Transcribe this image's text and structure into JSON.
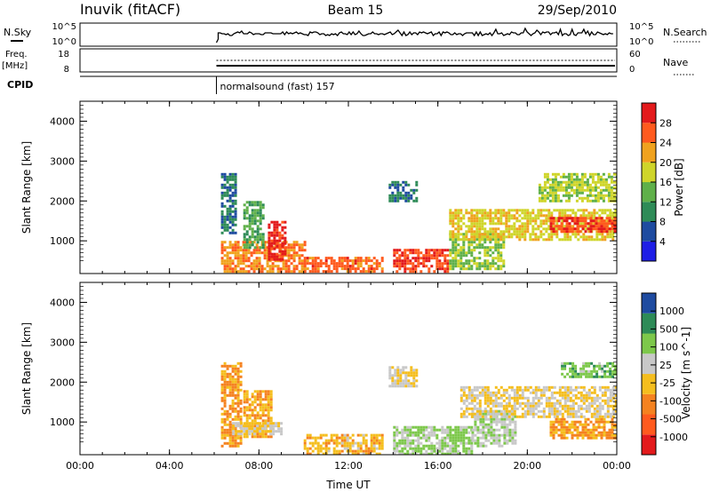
{
  "header": {
    "station": "Inuvik (fitACF)",
    "beam": "Beam 15",
    "date": "29/Sep/2010"
  },
  "summary": {
    "nsky_label": "N.Sky",
    "nsky_ticks": [
      "10^5",
      "10^0"
    ],
    "nsearch_label": "N.Search",
    "nsearch_ticks": [
      "10^5",
      "10^0"
    ],
    "freq_label": "Freq.",
    "freq_unit": "[MHz]",
    "freq_ticks": [
      "18",
      "8"
    ],
    "nave_label": "Nave",
    "nave_ticks": [
      "60",
      "0"
    ],
    "cpid_label": "CPID",
    "cpid_text": "normalsound (fast) 157",
    "start_hour": 6.1
  },
  "colors": {
    "power": [
      "#1e1ee6",
      "#1e4ba0",
      "#2e8b57",
      "#5fb04a",
      "#cfd52a",
      "#f0a21e",
      "#ff5a1e",
      "#e31a1c"
    ],
    "velocity": [
      "#e31a1c",
      "#ff5a1e",
      "#f58220",
      "#f5be1e",
      "#c8c8c8",
      "#7dc84b",
      "#2e8b57",
      "#1e4ba0"
    ]
  },
  "chart_data": [
    {
      "type": "heatmap",
      "title": "",
      "ylabel": "Slant Range [km]",
      "xlabel": "",
      "xlim": [
        0,
        24
      ],
      "ylim": [
        180,
        4500
      ],
      "x_ticks": [
        "00:00",
        "04:00",
        "08:00",
        "12:00",
        "16:00",
        "20:00",
        "00:00"
      ],
      "y_ticks": [
        "1000",
        "2000",
        "3000",
        "4000"
      ],
      "colorbar": {
        "label": "Power [dB]",
        "ticks": [
          "4",
          "8",
          "12",
          "16",
          "20",
          "24",
          "28"
        ],
        "range": [
          0,
          30
        ]
      },
      "echo_regions": [
        {
          "t0": 6.3,
          "t1": 10.0,
          "r0": 200,
          "r1": 1000,
          "value": 22
        },
        {
          "t0": 8.4,
          "t1": 9.2,
          "r0": 500,
          "r1": 1500,
          "value": 28
        },
        {
          "t0": 6.3,
          "t1": 7.0,
          "r0": 1200,
          "r1": 2700,
          "value": 8
        },
        {
          "t0": 7.3,
          "t1": 8.2,
          "r0": 800,
          "r1": 2000,
          "value": 12
        },
        {
          "t0": 10.0,
          "t1": 13.5,
          "r0": 200,
          "r1": 600,
          "value": 24
        },
        {
          "t0": 14.0,
          "t1": 16.5,
          "r0": 200,
          "r1": 800,
          "value": 26
        },
        {
          "t0": 16.5,
          "t1": 19.0,
          "r0": 300,
          "r1": 1200,
          "value": 14
        },
        {
          "t0": 13.8,
          "t1": 15.0,
          "r0": 2000,
          "r1": 2500,
          "value": 8
        },
        {
          "t0": 16.5,
          "t1": 24.0,
          "r0": 1000,
          "r1": 1800,
          "value": 18
        },
        {
          "t0": 21.0,
          "t1": 24.0,
          "r0": 1200,
          "r1": 1600,
          "value": 26
        },
        {
          "t0": 20.5,
          "t1": 24.0,
          "r0": 2000,
          "r1": 2700,
          "value": 16
        }
      ]
    },
    {
      "type": "heatmap",
      "title": "",
      "ylabel": "Slant Range [km]",
      "xlabel": "Time UT",
      "xlim": [
        0,
        24
      ],
      "ylim": [
        180,
        4500
      ],
      "x_ticks": [
        "00:00",
        "04:00",
        "08:00",
        "12:00",
        "16:00",
        "20:00",
        "00:00"
      ],
      "y_ticks": [
        "1000",
        "2000",
        "3000",
        "4000"
      ],
      "colorbar": {
        "label": "Velocity [m s^-1]",
        "ticks": [
          "1000",
          "500",
          "100",
          "25",
          "-25",
          "-100",
          "-500",
          "-1000"
        ],
        "range": [
          -1000,
          1000
        ]
      },
      "echo_regions": [
        {
          "t0": 6.3,
          "t1": 7.2,
          "r0": 400,
          "r1": 2500,
          "value": 300
        },
        {
          "t0": 7.3,
          "t1": 8.5,
          "r0": 600,
          "r1": 1800,
          "value": 200
        },
        {
          "t0": 6.8,
          "t1": 9.0,
          "r0": 700,
          "r1": 1000,
          "value": 0
        },
        {
          "t0": 10.0,
          "t1": 13.5,
          "r0": 200,
          "r1": 700,
          "value": 150
        },
        {
          "t0": 14.0,
          "t1": 17.5,
          "r0": 200,
          "r1": 900,
          "value": -300
        },
        {
          "t0": 17.5,
          "t1": 19.5,
          "r0": 400,
          "r1": 1300,
          "value": -200
        },
        {
          "t0": 13.8,
          "t1": 15.0,
          "r0": 1900,
          "r1": 2400,
          "value": 0
        },
        {
          "t0": 17.0,
          "t1": 24.0,
          "r0": 1100,
          "r1": 1900,
          "value": 0
        },
        {
          "t0": 21.0,
          "t1": 24.0,
          "r0": 600,
          "r1": 1100,
          "value": 300
        },
        {
          "t0": 21.5,
          "t1": 24.0,
          "r0": 2100,
          "r1": 2500,
          "value": -400
        }
      ]
    }
  ]
}
